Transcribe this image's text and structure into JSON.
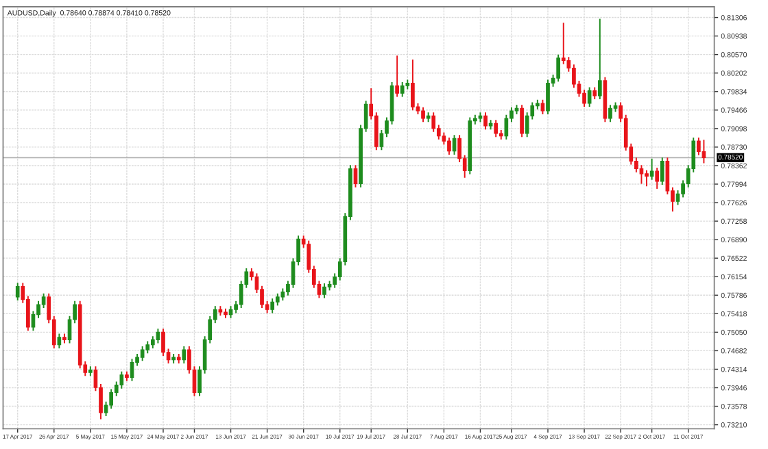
{
  "chart_data": {
    "type": "candlestick",
    "title": "AUDUSD,Daily  0.78640 0.78874 0.78410 0.78520",
    "categories": [
      "17 Apr 2017",
      null,
      null,
      null,
      null,
      null,
      null,
      "26 Apr 2017",
      null,
      null,
      null,
      null,
      null,
      null,
      "5 May 2017",
      null,
      null,
      null,
      null,
      null,
      null,
      "15 May 2017",
      null,
      null,
      null,
      null,
      null,
      null,
      "24 May 2017",
      null,
      null,
      null,
      null,
      null,
      "2 Jun 2017",
      null,
      null,
      null,
      null,
      null,
      null,
      "13 Jun 2017",
      null,
      null,
      null,
      null,
      null,
      null,
      "21 Jun 2017",
      null,
      null,
      null,
      null,
      null,
      null,
      "30 Jun 2017",
      null,
      null,
      null,
      null,
      null,
      null,
      "10 Jul 2017",
      null,
      null,
      null,
      null,
      null,
      "19 Jul 2017",
      null,
      null,
      null,
      null,
      null,
      null,
      "28 Jul 2017",
      null,
      null,
      null,
      null,
      null,
      null,
      "7 Aug 2017",
      null,
      null,
      null,
      null,
      null,
      null,
      "16 Aug 2017",
      null,
      null,
      null,
      null,
      null,
      "25 Aug 2017",
      null,
      null,
      null,
      null,
      null,
      null,
      "4 Sep 2017",
      null,
      null,
      null,
      null,
      null,
      null,
      "13 Sep 2017",
      null,
      null,
      null,
      null,
      null,
      null,
      "22 Sep 2017",
      null,
      null,
      null,
      null,
      null,
      "2 Oct 2017",
      null,
      null,
      null,
      null,
      null,
      null,
      "11 Oct 2017",
      null,
      null,
      null
    ],
    "ohlc": [
      [
        0.7575,
        0.7603,
        0.7568,
        0.7596
      ],
      [
        0.7596,
        0.7603,
        0.7563,
        0.757
      ],
      [
        0.757,
        0.7577,
        0.7508,
        0.7515
      ],
      [
        0.7515,
        0.7547,
        0.7508,
        0.754
      ],
      [
        0.754,
        0.7567,
        0.7533,
        0.756
      ],
      [
        0.756,
        0.7582,
        0.7553,
        0.7575
      ],
      [
        0.7575,
        0.7582,
        0.7523,
        0.753
      ],
      [
        0.753,
        0.7537,
        0.7473,
        0.748
      ],
      [
        0.748,
        0.7502,
        0.7473,
        0.7495
      ],
      [
        0.7495,
        0.7502,
        0.7483,
        0.749
      ],
      [
        0.749,
        0.7537,
        0.7483,
        0.753
      ],
      [
        0.753,
        0.7567,
        0.7523,
        0.756
      ],
      [
        0.756,
        0.7567,
        0.7433,
        0.744
      ],
      [
        0.744,
        0.7447,
        0.7418,
        0.7425
      ],
      [
        0.7425,
        0.7437,
        0.7418,
        0.743
      ],
      [
        0.743,
        0.7437,
        0.7388,
        0.7395
      ],
      [
        0.7395,
        0.7402,
        0.7332,
        0.7345
      ],
      [
        0.7345,
        0.7367,
        0.7338,
        0.736
      ],
      [
        0.736,
        0.7392,
        0.7353,
        0.7385
      ],
      [
        0.7385,
        0.7407,
        0.7378,
        0.74
      ],
      [
        0.74,
        0.7427,
        0.7393,
        0.742
      ],
      [
        0.742,
        0.7427,
        0.7408,
        0.7415
      ],
      [
        0.7415,
        0.7452,
        0.7408,
        0.7445
      ],
      [
        0.7445,
        0.7462,
        0.7438,
        0.7455
      ],
      [
        0.7455,
        0.7477,
        0.7448,
        0.747
      ],
      [
        0.747,
        0.7487,
        0.7463,
        0.748
      ],
      [
        0.748,
        0.7497,
        0.7473,
        0.749
      ],
      [
        0.749,
        0.7512,
        0.7483,
        0.7505
      ],
      [
        0.7505,
        0.7512,
        0.7458,
        0.7465
      ],
      [
        0.7465,
        0.7472,
        0.7443,
        0.745
      ],
      [
        0.745,
        0.7462,
        0.7443,
        0.7455
      ],
      [
        0.7455,
        0.7462,
        0.7443,
        0.745
      ],
      [
        0.745,
        0.7477,
        0.7443,
        0.747
      ],
      [
        0.747,
        0.7477,
        0.7423,
        0.743
      ],
      [
        0.743,
        0.7437,
        0.7378,
        0.7385
      ],
      [
        0.7385,
        0.7437,
        0.7378,
        0.743
      ],
      [
        0.743,
        0.7497,
        0.7423,
        0.749
      ],
      [
        0.749,
        0.7537,
        0.7483,
        0.753
      ],
      [
        0.753,
        0.7557,
        0.7523,
        0.755
      ],
      [
        0.755,
        0.7557,
        0.7538,
        0.7545
      ],
      [
        0.7545,
        0.7552,
        0.7533,
        0.754
      ],
      [
        0.754,
        0.7557,
        0.7533,
        0.755
      ],
      [
        0.755,
        0.7567,
        0.7543,
        0.756
      ],
      [
        0.756,
        0.7607,
        0.7553,
        0.76
      ],
      [
        0.76,
        0.7632,
        0.7593,
        0.7625
      ],
      [
        0.7625,
        0.7632,
        0.7608,
        0.7615
      ],
      [
        0.7615,
        0.7622,
        0.7583,
        0.759
      ],
      [
        0.759,
        0.7597,
        0.7553,
        0.756
      ],
      [
        0.756,
        0.7567,
        0.7543,
        0.755
      ],
      [
        0.755,
        0.7572,
        0.7543,
        0.7565
      ],
      [
        0.7565,
        0.7582,
        0.7558,
        0.7575
      ],
      [
        0.7575,
        0.7592,
        0.7568,
        0.7585
      ],
      [
        0.7585,
        0.7607,
        0.7578,
        0.76
      ],
      [
        0.76,
        0.7652,
        0.7593,
        0.7645
      ],
      [
        0.7645,
        0.7697,
        0.7638,
        0.769
      ],
      [
        0.769,
        0.7697,
        0.7673,
        0.768
      ],
      [
        0.768,
        0.7687,
        0.7623,
        0.763
      ],
      [
        0.763,
        0.7637,
        0.7593,
        0.76
      ],
      [
        0.76,
        0.7607,
        0.7573,
        0.758
      ],
      [
        0.758,
        0.7602,
        0.7573,
        0.7595
      ],
      [
        0.7595,
        0.7607,
        0.7588,
        0.76
      ],
      [
        0.76,
        0.7622,
        0.7593,
        0.7615
      ],
      [
        0.7615,
        0.7652,
        0.7608,
        0.7645
      ],
      [
        0.7645,
        0.7742,
        0.7638,
        0.7735
      ],
      [
        0.7735,
        0.7837,
        0.7728,
        0.783
      ],
      [
        0.783,
        0.7837,
        0.7793,
        0.78
      ],
      [
        0.78,
        0.7917,
        0.7793,
        0.791
      ],
      [
        0.791,
        0.7965,
        0.7903,
        0.7958
      ],
      [
        0.7958,
        0.799,
        0.7928,
        0.7935
      ],
      [
        0.7935,
        0.7942,
        0.7867,
        0.7874
      ],
      [
        0.7874,
        0.7907,
        0.7867,
        0.79
      ],
      [
        0.79,
        0.7932,
        0.7893,
        0.7925
      ],
      [
        0.7925,
        0.8002,
        0.7918,
        0.7995
      ],
      [
        0.7995,
        0.8055,
        0.7973,
        0.798
      ],
      [
        0.798,
        0.8002,
        0.7973,
        0.7995
      ],
      [
        0.7995,
        0.8007,
        0.7988,
        0.8
      ],
      [
        0.8,
        0.8047,
        0.7946,
        0.7953
      ],
      [
        0.7953,
        0.796,
        0.7938,
        0.7945
      ],
      [
        0.7945,
        0.7952,
        0.7923,
        0.793
      ],
      [
        0.793,
        0.7942,
        0.7923,
        0.7935
      ],
      [
        0.7935,
        0.7942,
        0.7903,
        0.791
      ],
      [
        0.791,
        0.7917,
        0.7888,
        0.7895
      ],
      [
        0.7895,
        0.7902,
        0.7878,
        0.7885
      ],
      [
        0.7885,
        0.7892,
        0.7858,
        0.7865
      ],
      [
        0.7865,
        0.7897,
        0.7858,
        0.789
      ],
      [
        0.789,
        0.7897,
        0.7843,
        0.785
      ],
      [
        0.785,
        0.7857,
        0.7812,
        0.7826
      ],
      [
        0.7826,
        0.7932,
        0.7819,
        0.7925
      ],
      [
        0.7925,
        0.7937,
        0.7918,
        0.793
      ],
      [
        0.793,
        0.7942,
        0.7923,
        0.7935
      ],
      [
        0.7935,
        0.7942,
        0.7908,
        0.7915
      ],
      [
        0.7915,
        0.7927,
        0.7908,
        0.792
      ],
      [
        0.792,
        0.7927,
        0.7893,
        0.79
      ],
      [
        0.79,
        0.7907,
        0.7888,
        0.7895
      ],
      [
        0.7895,
        0.7937,
        0.7888,
        0.793
      ],
      [
        0.793,
        0.7952,
        0.7923,
        0.7945
      ],
      [
        0.7945,
        0.7957,
        0.7938,
        0.795
      ],
      [
        0.795,
        0.7957,
        0.7893,
        0.79
      ],
      [
        0.79,
        0.7942,
        0.7893,
        0.7935
      ],
      [
        0.7935,
        0.7962,
        0.7928,
        0.7955
      ],
      [
        0.7955,
        0.7967,
        0.7948,
        0.796
      ],
      [
        0.796,
        0.7967,
        0.7938,
        0.7945
      ],
      [
        0.7945,
        0.8007,
        0.7938,
        0.8
      ],
      [
        0.8,
        0.8017,
        0.7993,
        0.801
      ],
      [
        0.801,
        0.8057,
        0.8003,
        0.805
      ],
      [
        0.805,
        0.812,
        0.8038,
        0.8045
      ],
      [
        0.8045,
        0.8052,
        0.8023,
        0.803
      ],
      [
        0.803,
        0.8037,
        0.7991,
        0.7998
      ],
      [
        0.7998,
        0.8005,
        0.7973,
        0.798
      ],
      [
        0.798,
        0.7987,
        0.7953,
        0.796
      ],
      [
        0.796,
        0.7992,
        0.7953,
        0.7985
      ],
      [
        0.7985,
        0.7992,
        0.7968,
        0.7975
      ],
      [
        0.7975,
        0.8128,
        0.7968,
        0.8005
      ],
      [
        0.8005,
        0.8012,
        0.7923,
        0.793
      ],
      [
        0.793,
        0.7957,
        0.7923,
        0.795
      ],
      [
        0.795,
        0.7962,
        0.7943,
        0.7955
      ],
      [
        0.7955,
        0.7962,
        0.7923,
        0.793
      ],
      [
        0.793,
        0.7937,
        0.7866,
        0.7873
      ],
      [
        0.7873,
        0.788,
        0.7838,
        0.7845
      ],
      [
        0.7845,
        0.7852,
        0.7823,
        0.783
      ],
      [
        0.783,
        0.7837,
        0.78,
        0.782
      ],
      [
        0.782,
        0.7827,
        0.7795,
        0.7815
      ],
      [
        0.7815,
        0.785,
        0.7808,
        0.7825
      ],
      [
        0.7825,
        0.7832,
        0.779,
        0.7805
      ],
      [
        0.7805,
        0.7852,
        0.7798,
        0.7845
      ],
      [
        0.7845,
        0.7852,
        0.7779,
        0.7786
      ],
      [
        0.7786,
        0.7793,
        0.7745,
        0.7765
      ],
      [
        0.7765,
        0.7787,
        0.7758,
        0.778
      ],
      [
        0.778,
        0.7807,
        0.7773,
        0.78
      ],
      [
        0.78,
        0.7837,
        0.7793,
        0.783
      ],
      [
        0.783,
        0.7892,
        0.7823,
        0.7885
      ],
      [
        0.7885,
        0.7892,
        0.7857,
        0.7864
      ],
      [
        0.7864,
        0.78874,
        0.7841,
        0.7852
      ]
    ],
    "colors": [
      "#1e8c1e",
      "#e8141a",
      "#e8141a",
      "#1e8c1e",
      "#1e8c1e",
      "#1e8c1e",
      "#e8141a",
      "#e8141a",
      "#1e8c1e",
      "#e8141a",
      "#1e8c1e",
      "#1e8c1e",
      "#e8141a",
      "#e8141a",
      "#1e8c1e",
      "#e8141a",
      "#e8141a",
      "#1e8c1e",
      "#1e8c1e",
      "#1e8c1e",
      "#1e8c1e",
      "#e8141a",
      "#1e8c1e",
      "#1e8c1e",
      "#1e8c1e",
      "#1e8c1e",
      "#1e8c1e",
      "#1e8c1e",
      "#e8141a",
      "#e8141a",
      "#1e8c1e",
      "#e8141a",
      "#1e8c1e",
      "#e8141a",
      "#e8141a",
      "#1e8c1e",
      "#1e8c1e",
      "#1e8c1e",
      "#1e8c1e",
      "#e8141a",
      "#e8141a",
      "#1e8c1e",
      "#1e8c1e",
      "#1e8c1e",
      "#1e8c1e",
      "#e8141a",
      "#e8141a",
      "#e8141a",
      "#e8141a",
      "#1e8c1e",
      "#1e8c1e",
      "#1e8c1e",
      "#1e8c1e",
      "#1e8c1e",
      "#1e8c1e",
      "#e8141a",
      "#e8141a",
      "#e8141a",
      "#e8141a",
      "#1e8c1e",
      "#1e8c1e",
      "#1e8c1e",
      "#1e8c1e",
      "#1e8c1e",
      "#1e8c1e",
      "#e8141a",
      "#1e8c1e",
      "#1e8c1e",
      "#e8141a",
      "#e8141a",
      "#1e8c1e",
      "#1e8c1e",
      "#1e8c1e",
      "#e8141a",
      "#1e8c1e",
      "#1e8c1e",
      "#e8141a",
      "#e8141a",
      "#e8141a",
      "#1e8c1e",
      "#e8141a",
      "#e8141a",
      "#e8141a",
      "#e8141a",
      "#1e8c1e",
      "#e8141a",
      "#e8141a",
      "#1e8c1e",
      "#1e8c1e",
      "#1e8c1e",
      "#e8141a",
      "#1e8c1e",
      "#e8141a",
      "#e8141a",
      "#1e8c1e",
      "#1e8c1e",
      "#1e8c1e",
      "#e8141a",
      "#1e8c1e",
      "#1e8c1e",
      "#1e8c1e",
      "#e8141a",
      "#1e8c1e",
      "#1e8c1e",
      "#1e8c1e",
      "#e8141a",
      "#e8141a",
      "#e8141a",
      "#e8141a",
      "#e8141a",
      "#1e8c1e",
      "#e8141a",
      "#1e8c1e",
      "#e8141a",
      "#1e8c1e",
      "#1e8c1e",
      "#e8141a",
      "#e8141a",
      "#e8141a",
      "#e8141a",
      "#e8141a",
      "#e8141a",
      "#1e8c1e",
      "#e8141a",
      "#1e8c1e",
      "#e8141a",
      "#e8141a",
      "#1e8c1e",
      "#1e8c1e",
      "#1e8c1e",
      "#1e8c1e",
      "#e8141a",
      "#e8141a"
    ],
    "ylim": [
      0.7313,
      0.8152
    ],
    "yticks": [
      {
        "value": 0.7321,
        "label": "0.73210"
      },
      {
        "value": 0.73578,
        "label": "0.73578"
      },
      {
        "value": 0.73946,
        "label": "0.73946"
      },
      {
        "value": 0.74314,
        "label": "0.74314"
      },
      {
        "value": 0.74682,
        "label": "0.74682"
      },
      {
        "value": 0.7505,
        "label": "0.75050"
      },
      {
        "value": 0.75418,
        "label": "0.75418"
      },
      {
        "value": 0.75786,
        "label": "0.75786"
      },
      {
        "value": 0.76154,
        "label": "0.76154"
      },
      {
        "value": 0.76522,
        "label": "0.76522"
      },
      {
        "value": 0.7689,
        "label": "0.76890"
      },
      {
        "value": 0.77258,
        "label": "0.77258"
      },
      {
        "value": 0.77626,
        "label": "0.77626"
      },
      {
        "value": 0.77994,
        "label": "0.77994"
      },
      {
        "value": 0.78362,
        "label": "0.78362"
      },
      {
        "value": 0.7873,
        "label": "0.78730"
      },
      {
        "value": 0.79098,
        "label": "0.79098"
      },
      {
        "value": 0.79466,
        "label": "0.79466"
      },
      {
        "value": 0.79834,
        "label": "0.79834"
      },
      {
        "value": 0.80202,
        "label": "0.80202"
      },
      {
        "value": 0.8057,
        "label": "0.80570"
      },
      {
        "value": 0.80938,
        "label": "0.80938"
      },
      {
        "value": 0.81306,
        "label": "0.81306"
      }
    ],
    "ref_lines": [
      {
        "axis": "y",
        "value": 0.7852,
        "label": "0.78520",
        "color": "#b0b0b0"
      }
    ],
    "grid": true
  }
}
